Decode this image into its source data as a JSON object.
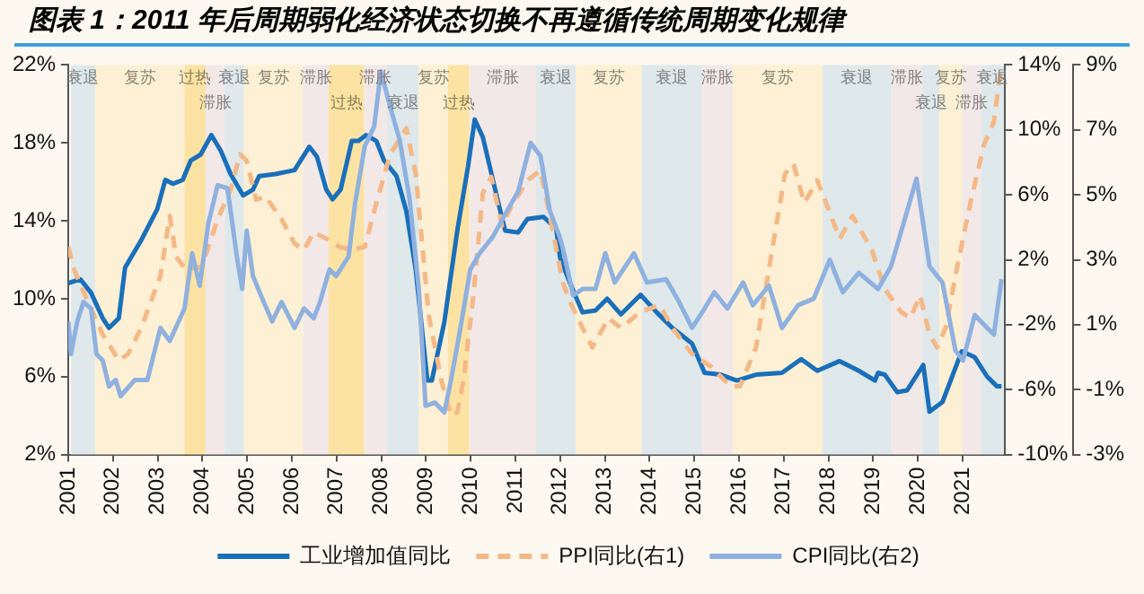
{
  "chart_data": {
    "type": "line",
    "title": "图表 1：2011 年后周期弱化经济状态切换不再遵循传统周期变化规律",
    "xlim": [
      2001,
      2021.95
    ],
    "xticks": [
      2001,
      2002,
      2003,
      2004,
      2005,
      2006,
      2007,
      2008,
      2009,
      2010,
      2011,
      2012,
      2013,
      2014,
      2015,
      2016,
      2017,
      2018,
      2019,
      2020,
      2021
    ],
    "ylim": [
      2,
      22
    ],
    "yticks": [
      {
        "value": 2,
        "label": "2%"
      },
      {
        "value": 6,
        "label": "6%"
      },
      {
        "value": 10,
        "label": "10%"
      },
      {
        "value": 14,
        "label": "14%"
      },
      {
        "value": 18,
        "label": "18%"
      },
      {
        "value": 22,
        "label": "22%"
      }
    ],
    "y2lim": [
      -10,
      14
    ],
    "y2ticks": [
      {
        "value": -10,
        "label": "-10%"
      },
      {
        "value": -6,
        "label": "-6%"
      },
      {
        "value": -2,
        "label": "-2%"
      },
      {
        "value": 2,
        "label": "2%"
      },
      {
        "value": 6,
        "label": "6%"
      },
      {
        "value": 10,
        "label": "10%"
      },
      {
        "value": 14,
        "label": "14%"
      }
    ],
    "y3lim": [
      -3,
      9
    ],
    "y3ticks": [
      {
        "value": -3,
        "label": "-3%"
      },
      {
        "value": -1,
        "label": "-1%"
      },
      {
        "value": 1,
        "label": "1%"
      },
      {
        "value": 3,
        "label": "3%"
      },
      {
        "value": 5,
        "label": "5%"
      },
      {
        "value": 7,
        "label": "7%"
      },
      {
        "value": 9,
        "label": "9%"
      }
    ],
    "grid": false,
    "legend": "bottom",
    "marker": "none",
    "series": [
      {
        "name": "工业增加值同比",
        "color": "#1a6fba",
        "line_style": "solid",
        "x": [
          2001.0,
          2001.27,
          2001.51,
          2001.77,
          2001.91,
          2002.13,
          2002.27,
          2002.63,
          2002.99,
          2003.17,
          2003.34,
          2003.56,
          2003.74,
          2003.96,
          2004.2,
          2004.41,
          2004.63,
          2004.91,
          2005.13,
          2005.27,
          2005.63,
          2006.06,
          2006.39,
          2006.56,
          2006.77,
          2006.91,
          2007.09,
          2007.34,
          2007.49,
          2007.66,
          2007.89,
          2008.06,
          2008.34,
          2008.56,
          2008.77,
          2009.03,
          2009.13,
          2009.41,
          2009.7,
          2009.94,
          2010.09,
          2010.27,
          2010.63,
          2010.77,
          2011.06,
          2011.27,
          2011.63,
          2011.91,
          2012.0,
          2012.22,
          2012.5,
          2012.79,
          2013.05,
          2013.36,
          2013.8,
          2014.16,
          2014.51,
          2014.95,
          2015.23,
          2015.59,
          2015.95,
          2016.38,
          2016.96,
          2017.39,
          2017.75,
          2018.25,
          2018.68,
          2019.04,
          2019.11,
          2019.26,
          2019.54,
          2019.76,
          2020.12,
          2020.26,
          2020.55,
          2020.98,
          2021.27,
          2021.55,
          2021.77,
          2021.87
        ],
        "values": [
          10.8,
          11.0,
          10.3,
          9.0,
          8.5,
          9.0,
          11.6,
          13.0,
          14.6,
          16.1,
          15.9,
          16.1,
          17.1,
          17.4,
          18.4,
          17.6,
          16.4,
          15.3,
          15.6,
          16.3,
          16.4,
          16.6,
          17.8,
          17.3,
          15.6,
          15.1,
          15.6,
          18.1,
          18.1,
          18.4,
          18.1,
          17.1,
          16.3,
          14.5,
          11.5,
          5.8,
          5.8,
          8.8,
          13.5,
          16.8,
          19.2,
          18.3,
          14.8,
          13.5,
          13.4,
          14.1,
          14.2,
          13.6,
          12.1,
          10.8,
          9.3,
          9.4,
          10.0,
          9.2,
          10.2,
          9.3,
          8.5,
          7.7,
          6.2,
          6.1,
          5.8,
          6.1,
          6.2,
          6.9,
          6.3,
          6.8,
          6.3,
          5.8,
          6.2,
          6.1,
          5.2,
          5.3,
          6.6,
          4.2,
          4.7,
          7.3,
          7.0,
          6.0,
          5.5,
          5.5
        ]
      },
      {
        "name": "PPI同比(右1)",
        "color": "#f5b887",
        "axis": "y2",
        "line_style": "dashed",
        "x": [
          2001.0,
          2001.13,
          2001.41,
          2001.77,
          2002.13,
          2002.34,
          2002.63,
          2003.06,
          2003.27,
          2003.41,
          2003.63,
          2003.99,
          2004.34,
          2004.63,
          2004.84,
          2004.99,
          2005.2,
          2005.41,
          2005.77,
          2006.06,
          2006.27,
          2006.49,
          2006.77,
          2007.06,
          2007.34,
          2007.63,
          2007.91,
          2008.2,
          2008.56,
          2008.77,
          2009.06,
          2009.34,
          2009.56,
          2009.7,
          2009.84,
          2010.06,
          2010.27,
          2010.46,
          2010.7,
          2010.91,
          2011.27,
          2011.56,
          2011.84,
          2012.06,
          2012.22,
          2012.5,
          2012.72,
          2013.08,
          2013.36,
          2013.8,
          2014.23,
          2014.51,
          2014.95,
          2015.38,
          2015.81,
          2016.02,
          2016.38,
          2016.74,
          2017.03,
          2017.22,
          2017.46,
          2017.75,
          2018.03,
          2018.25,
          2018.54,
          2018.97,
          2019.26,
          2019.62,
          2019.83,
          2020.05,
          2020.26,
          2020.43,
          2020.62,
          2020.91,
          2021.19,
          2021.48,
          2021.7,
          2021.84
        ],
        "values": [
          2.8,
          1.4,
          -0.4,
          -2.6,
          -4.2,
          -3.8,
          -2.2,
          1.0,
          4.7,
          2.2,
          1.4,
          1.6,
          4.5,
          6.3,
          8.5,
          8.1,
          5.7,
          5.9,
          4.5,
          3.0,
          2.6,
          3.7,
          3.3,
          2.8,
          2.6,
          2.8,
          5.7,
          8.5,
          10.1,
          7.3,
          -1.4,
          -5.4,
          -7.6,
          -7.4,
          -5.4,
          -0.2,
          6.1,
          7.1,
          4.1,
          5.3,
          6.9,
          7.5,
          3.7,
          0.6,
          -0.6,
          -2.2,
          -3.4,
          -1.6,
          -2.2,
          -1.2,
          -0.8,
          -2.2,
          -3.8,
          -4.6,
          -5.8,
          -5.8,
          -3.4,
          2.6,
          7.3,
          7.9,
          5.5,
          6.9,
          4.9,
          3.3,
          4.7,
          2.6,
          0.2,
          -1.2,
          -1.6,
          -0.2,
          -2.6,
          -3.4,
          -2.2,
          2.0,
          5.7,
          9.1,
          10.5,
          13.5
        ]
      },
      {
        "name": "CPI同比(右2)",
        "color": "#8fb1e0",
        "axis": "y3",
        "line_style": "solid",
        "x": [
          2001.0,
          2001.06,
          2001.2,
          2001.34,
          2001.51,
          2001.63,
          2001.77,
          2001.91,
          2002.06,
          2002.17,
          2002.49,
          2002.77,
          2003.06,
          2003.27,
          2003.6,
          2003.77,
          2003.94,
          2004.13,
          2004.34,
          2004.56,
          2004.77,
          2004.89,
          2004.99,
          2005.13,
          2005.34,
          2005.56,
          2005.77,
          2006.06,
          2006.27,
          2006.49,
          2006.63,
          2006.84,
          2006.99,
          2007.27,
          2007.41,
          2007.63,
          2007.84,
          2007.99,
          2008.2,
          2008.41,
          2008.63,
          2008.84,
          2008.99,
          2009.2,
          2009.41,
          2009.56,
          2009.77,
          2009.99,
          2010.2,
          2010.49,
          2010.77,
          2011.06,
          2011.34,
          2011.56,
          2011.77,
          2011.99,
          2012.07,
          2012.29,
          2012.5,
          2012.79,
          2013.01,
          2013.22,
          2013.65,
          2013.94,
          2014.37,
          2014.66,
          2014.95,
          2015.23,
          2015.45,
          2015.74,
          2016.09,
          2016.31,
          2016.67,
          2016.96,
          2017.32,
          2017.67,
          2018.03,
          2018.32,
          2018.68,
          2019.11,
          2019.4,
          2019.76,
          2019.97,
          2020.26,
          2020.55,
          2020.84,
          2021.01,
          2021.27,
          2021.55,
          2021.7,
          2021.87
        ],
        "values": [
          1.1,
          0.1,
          1.1,
          1.7,
          1.5,
          0.1,
          -0.1,
          -0.9,
          -0.7,
          -1.2,
          -0.7,
          -0.7,
          0.9,
          0.5,
          1.5,
          3.2,
          2.2,
          4.1,
          5.3,
          5.2,
          3.1,
          2.1,
          3.9,
          2.5,
          1.8,
          1.1,
          1.7,
          0.9,
          1.5,
          1.2,
          1.7,
          2.7,
          2.5,
          3.1,
          4.7,
          6.5,
          7.1,
          8.8,
          7.7,
          6.7,
          4.9,
          2.1,
          -1.5,
          -1.4,
          -1.7,
          -0.7,
          0.9,
          2.7,
          3.2,
          3.7,
          4.4,
          5.1,
          6.6,
          6.2,
          4.5,
          3.7,
          3.3,
          1.9,
          2.1,
          2.1,
          3.2,
          2.3,
          3.2,
          2.3,
          2.4,
          1.7,
          0.9,
          1.5,
          2.0,
          1.5,
          2.3,
          1.6,
          2.2,
          0.9,
          1.6,
          1.8,
          3.0,
          2.0,
          2.6,
          2.1,
          2.8,
          4.5,
          5.5,
          2.8,
          2.3,
          0.2,
          -0.1,
          1.3,
          0.9,
          0.7,
          2.4
        ]
      }
    ],
    "bands": [
      {
        "axis": "x",
        "from": 2001.06,
        "to": 2001.6,
        "label": "衰退",
        "color": "#dfe8ea"
      },
      {
        "axis": "x",
        "from": 2001.6,
        "to": 2003.6,
        "label": "复苏",
        "color": "#fdf0d4"
      },
      {
        "axis": "x",
        "from": 2003.6,
        "to": 2004.07,
        "label": "过热",
        "color": "#fde3a3"
      },
      {
        "axis": "x",
        "from": 2004.07,
        "to": 2004.5,
        "label": "滞胀",
        "color": "#f3e8e8"
      },
      {
        "axis": "x",
        "from": 2004.5,
        "to": 2004.93,
        "label": "衰退",
        "color": "#dfe8ea"
      },
      {
        "axis": "x",
        "from": 2004.93,
        "to": 2006.25,
        "label": "复苏",
        "color": "#fdf0d4"
      },
      {
        "axis": "x",
        "from": 2006.25,
        "to": 2006.82,
        "label": "滞胀",
        "color": "#f3e8e8"
      },
      {
        "axis": "x",
        "from": 2006.82,
        "to": 2007.62,
        "label": "过热",
        "color": "#fde3a3"
      },
      {
        "axis": "x",
        "from": 2007.62,
        "to": 2008.13,
        "label": "滞胀",
        "color": "#f3e8e8"
      },
      {
        "axis": "x",
        "from": 2008.13,
        "to": 2008.84,
        "label": "衰退",
        "color": "#dfe8ea"
      },
      {
        "axis": "x",
        "from": 2008.84,
        "to": 2009.49,
        "label": "复苏",
        "color": "#fdf0d4"
      },
      {
        "axis": "x",
        "from": 2009.49,
        "to": 2009.97,
        "label": "过热",
        "color": "#fde3a3"
      },
      {
        "axis": "x",
        "from": 2009.97,
        "to": 2011.45,
        "label": "滞胀",
        "color": "#f3e8e8"
      },
      {
        "axis": "x",
        "from": 2011.45,
        "to": 2012.35,
        "label": "衰退",
        "color": "#dfe8ea"
      },
      {
        "axis": "x",
        "from": 2012.35,
        "to": 2013.82,
        "label": "复苏",
        "color": "#fdf0d4"
      },
      {
        "axis": "x",
        "from": 2013.82,
        "to": 2015.18,
        "label": "衰退",
        "color": "#dfe8ea"
      },
      {
        "axis": "x",
        "from": 2015.18,
        "to": 2015.87,
        "label": "滞胀",
        "color": "#f3e8e8"
      },
      {
        "axis": "x",
        "from": 2015.87,
        "to": 2017.87,
        "label": "复苏",
        "color": "#fdf0d4"
      },
      {
        "axis": "x",
        "from": 2017.87,
        "to": 2019.41,
        "label": "衰退",
        "color": "#dfe8ea"
      },
      {
        "axis": "x",
        "from": 2019.41,
        "to": 2020.1,
        "label": "滞胀",
        "color": "#f3e8e8"
      },
      {
        "axis": "x",
        "from": 2020.1,
        "to": 2020.48,
        "label": "衰退",
        "color": "#dfe8ea"
      },
      {
        "axis": "x",
        "from": 2020.48,
        "to": 2020.99,
        "label": "复苏",
        "color": "#fdf0d4"
      },
      {
        "axis": "x",
        "from": 2020.99,
        "to": 2021.42,
        "label": "滞胀",
        "color": "#f3e8e8"
      },
      {
        "axis": "x",
        "from": 2021.42,
        "to": 2021.92,
        "label": "衰退",
        "color": "#dfe8ea"
      }
    ]
  }
}
